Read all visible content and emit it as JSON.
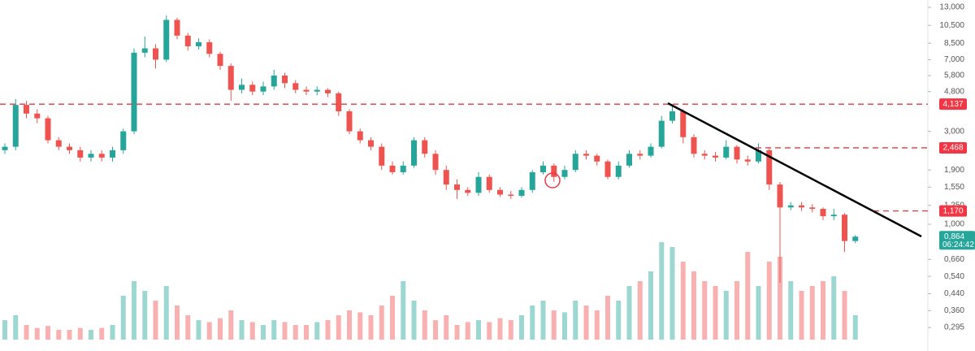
{
  "chart_data": {
    "type": "candlestick",
    "log_scale": true,
    "up_color": "#26a69a",
    "down_color": "#ef5350",
    "open": [
      2.4,
      2.5,
      4.1,
      3.7,
      3.5,
      2.7,
      2.5,
      2.4,
      2.2,
      2.3,
      2.2,
      2.4,
      3.0,
      7.6,
      8.0,
      7.0,
      11.2,
      9.3,
      8.2,
      8.6,
      7.5,
      6.5,
      4.9,
      5.2,
      4.8,
      5.1,
      5.8,
      5.3,
      4.9,
      4.8,
      4.9,
      4.7,
      3.8,
      3.0,
      2.7,
      2.5,
      2.0,
      1.85,
      2.0,
      2.7,
      2.3,
      1.9,
      1.6,
      1.5,
      1.45,
      1.75,
      1.5,
      1.42,
      1.4,
      1.5,
      1.85,
      2.0,
      1.75,
      1.9,
      2.3,
      2.25,
      2.1,
      1.75,
      2.0,
      2.3,
      2.25,
      2.5,
      3.4,
      3.8,
      2.8,
      2.3,
      2.25,
      2.2,
      2.5,
      2.15,
      2.1,
      2.4,
      1.6,
      1.22,
      1.25,
      1.22,
      1.2,
      1.1,
      1.12,
      0.82
    ],
    "high": [
      2.6,
      4.4,
      4.3,
      3.9,
      3.6,
      2.8,
      2.6,
      2.5,
      2.4,
      2.4,
      2.5,
      3.1,
      8.0,
      9.2,
      8.4,
      11.8,
      11.5,
      9.6,
      9.0,
      8.9,
      7.7,
      6.7,
      5.6,
      5.4,
      5.4,
      6.2,
      6.0,
      5.5,
      5.1,
      5.1,
      5.0,
      4.8,
      3.9,
      3.1,
      2.8,
      2.6,
      2.1,
      2.1,
      2.8,
      2.8,
      2.4,
      2.0,
      1.7,
      1.55,
      1.85,
      1.8,
      1.55,
      1.48,
      1.55,
      1.9,
      2.1,
      2.05,
      2.0,
      2.4,
      2.4,
      2.3,
      2.15,
      2.1,
      2.4,
      2.4,
      2.6,
      3.6,
      4.1,
      3.9,
      2.9,
      2.4,
      2.35,
      2.7,
      2.55,
      2.25,
      2.6,
      2.45,
      1.65,
      1.3,
      1.3,
      1.27,
      1.22,
      1.2,
      1.14,
      0.88
    ],
    "low": [
      2.3,
      2.4,
      3.5,
      3.3,
      2.6,
      2.4,
      2.3,
      2.1,
      2.1,
      2.1,
      2.1,
      2.3,
      2.9,
      7.2,
      6.3,
      6.8,
      8.9,
      7.8,
      7.9,
      7.2,
      6.2,
      4.3,
      4.7,
      4.6,
      4.6,
      4.9,
      5.0,
      4.7,
      4.6,
      4.6,
      4.5,
      3.6,
      2.9,
      2.6,
      2.4,
      1.9,
      1.8,
      1.8,
      1.95,
      2.2,
      1.8,
      1.5,
      1.35,
      1.4,
      1.4,
      1.45,
      1.38,
      1.35,
      1.37,
      1.45,
      1.8,
      1.65,
      1.7,
      1.85,
      2.15,
      2.0,
      1.7,
      1.7,
      1.95,
      2.15,
      2.2,
      2.45,
      3.3,
      2.6,
      2.2,
      2.15,
      2.1,
      2.15,
      2.05,
      2.0,
      2.05,
      1.5,
      0.5,
      1.18,
      1.17,
      1.15,
      1.05,
      1.05,
      0.72,
      0.8
    ],
    "close": [
      2.5,
      4.1,
      3.7,
      3.5,
      2.7,
      2.5,
      2.4,
      2.2,
      2.3,
      2.2,
      2.4,
      3.0,
      7.6,
      8.0,
      7.0,
      11.2,
      9.3,
      8.2,
      8.6,
      7.5,
      6.5,
      4.9,
      5.2,
      4.8,
      5.1,
      5.8,
      5.3,
      4.9,
      4.8,
      4.9,
      4.7,
      3.8,
      3.0,
      2.7,
      2.5,
      2.0,
      1.85,
      2.0,
      2.7,
      2.3,
      1.9,
      1.6,
      1.5,
      1.45,
      1.75,
      1.5,
      1.42,
      1.4,
      1.5,
      1.85,
      2.0,
      1.75,
      1.9,
      2.3,
      2.25,
      2.1,
      1.75,
      2.0,
      2.3,
      2.25,
      2.5,
      3.4,
      3.8,
      2.8,
      2.3,
      2.25,
      2.2,
      2.5,
      2.15,
      2.1,
      2.4,
      1.6,
      1.22,
      1.25,
      1.22,
      1.2,
      1.1,
      1.12,
      0.82,
      0.864
    ],
    "volume": [
      20,
      25,
      15,
      12,
      14,
      10,
      10,
      12,
      10,
      12,
      15,
      45,
      60,
      50,
      40,
      55,
      35,
      25,
      20,
      18,
      22,
      30,
      20,
      18,
      15,
      20,
      18,
      15,
      15,
      18,
      20,
      25,
      30,
      28,
      25,
      35,
      45,
      60,
      40,
      30,
      20,
      25,
      15,
      18,
      20,
      18,
      22,
      20,
      25,
      35,
      40,
      30,
      28,
      40,
      35,
      30,
      45,
      40,
      55,
      60,
      70,
      100,
      95,
      80,
      70,
      60,
      55,
      50,
      60,
      90,
      55,
      80,
      85,
      60,
      50,
      55,
      60,
      65,
      50,
      25
    ],
    "ylim": [
      0.2235,
      14.17
    ],
    "yticks": [
      {
        "value": 13,
        "label": "13,000"
      },
      {
        "value": 10.5,
        "label": "10,500"
      },
      {
        "value": 8.5,
        "label": "8,500"
      },
      {
        "value": 7,
        "label": "7,000"
      },
      {
        "value": 5.8,
        "label": "5,800"
      },
      {
        "value": 4.8,
        "label": "4,800"
      },
      {
        "value": 3,
        "label": "3,000"
      },
      {
        "value": 1.9,
        "label": "1,900"
      },
      {
        "value": 1.55,
        "label": "1,550"
      },
      {
        "value": 1.25,
        "label": "1,250"
      },
      {
        "value": 1,
        "label": "1,000"
      },
      {
        "value": 0.66,
        "label": "0,660"
      },
      {
        "value": 0.54,
        "label": "0,540"
      },
      {
        "value": 0.44,
        "label": "0,440"
      },
      {
        "value": 0.36,
        "label": "0,360"
      },
      {
        "value": 0.295,
        "label": "0,295"
      }
    ],
    "price_lines": [
      {
        "value": 4.137,
        "label": "4,137"
      },
      {
        "value": 2.468,
        "label": "2,468"
      },
      {
        "value": 1.17,
        "label": "1,170"
      }
    ],
    "last_price": {
      "value": 0.864,
      "label": "0,864"
    },
    "countdown": "06:24:42"
  }
}
